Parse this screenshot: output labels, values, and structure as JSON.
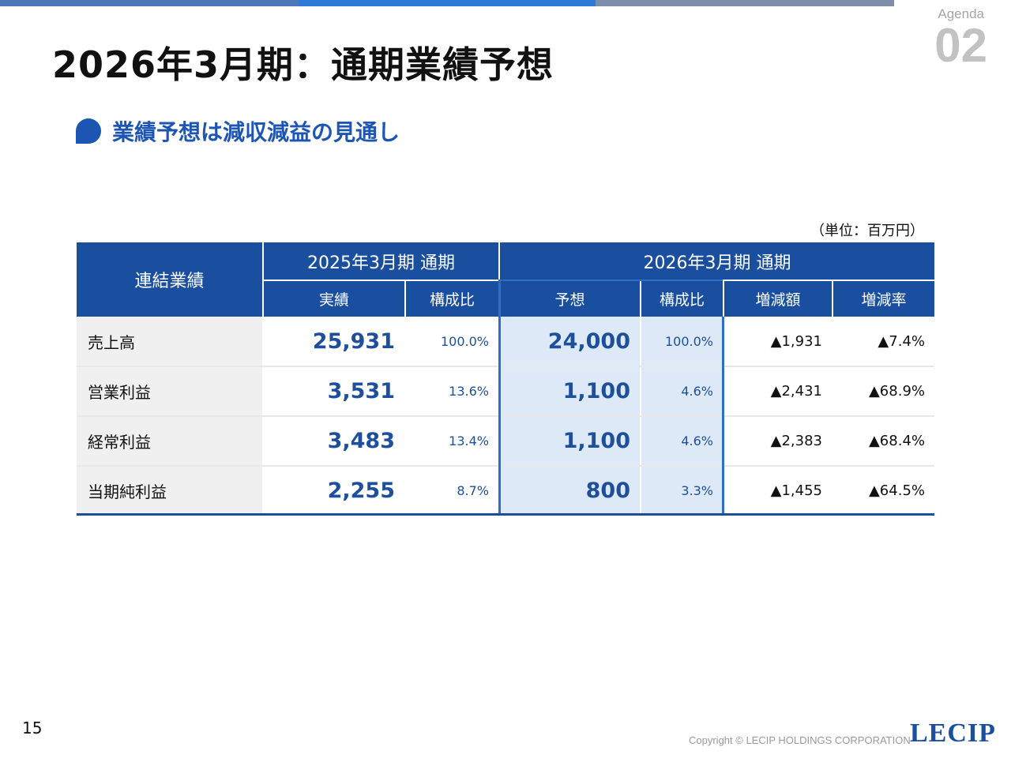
{
  "agenda": {
    "label": "Agenda",
    "number": "02"
  },
  "page_title": "2026年3月期：通期業績予想",
  "subtitle": "業績予想は減収減益の見通し",
  "unit_note": "（単位：百万円）",
  "table": {
    "header_rowlabel": "連結業績",
    "group_2025": "2025年3月期 通期",
    "group_2026": "2026年3月期 通期",
    "col_actual": "実績",
    "col_ratio_2025": "構成比",
    "col_forecast": "予想",
    "col_ratio_2026": "構成比",
    "col_change": "増減額",
    "col_change_rate": "増減率",
    "rows": [
      {
        "label": "売上高",
        "actual": "25,931",
        "ratio2025": "100.0%",
        "forecast": "24,000",
        "ratio2026": "100.0%",
        "change": "▲1,931",
        "rate": "▲7.4%"
      },
      {
        "label": "営業利益",
        "actual": "3,531",
        "ratio2025": "13.6%",
        "forecast": "1,100",
        "ratio2026": "4.6%",
        "change": "▲2,431",
        "rate": "▲68.9%"
      },
      {
        "label": "経常利益",
        "actual": "3,483",
        "ratio2025": "13.4%",
        "forecast": "1,100",
        "ratio2026": "4.6%",
        "change": "▲2,383",
        "rate": "▲68.4%"
      },
      {
        "label": "当期純利益",
        "actual": "2,255",
        "ratio2025": "8.7%",
        "forecast": "800",
        "ratio2026": "3.3%",
        "change": "▲1,455",
        "rate": "▲64.5%"
      }
    ]
  },
  "footer": {
    "page_number": "15",
    "copyright": "Copyright © LECIP HOLDINGS CORPORATION",
    "logo": "LECIP"
  }
}
